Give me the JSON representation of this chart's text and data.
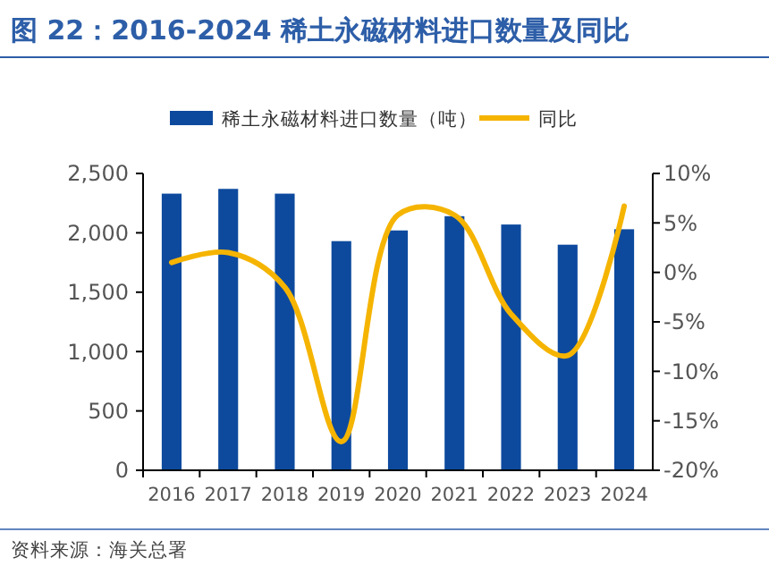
{
  "chart_data": {
    "type": "bar",
    "title": "图 22：2016-2024 稀土永磁材料进口数量及同比",
    "categories": [
      "2016",
      "2017",
      "2018",
      "2019",
      "2020",
      "2021",
      "2022",
      "2023",
      "2024"
    ],
    "series": [
      {
        "name": "稀土永磁材料进口数量（吨）",
        "color": "#0d4a9e",
        "values": [
          2330,
          2370,
          2330,
          1930,
          2020,
          2140,
          2070,
          1900,
          2030
        ]
      },
      {
        "name": "同比",
        "type": "line",
        "axis": "y2",
        "color": "#f5b400",
        "values": [
          1.0,
          2.0,
          -1.5,
          -17.1,
          5.8,
          5.8,
          -4.2,
          -8.4,
          6.7
        ]
      }
    ],
    "ylim": [
      0,
      2500
    ],
    "yticks": [
      {
        "value": 0,
        "label": "0"
      },
      {
        "value": 500,
        "label": "500"
      },
      {
        "value": 1000,
        "label": "1,000"
      },
      {
        "value": 1500,
        "label": "1,500"
      },
      {
        "value": 2000,
        "label": "2,000"
      },
      {
        "value": 2500,
        "label": "2,500"
      }
    ],
    "y2lim": [
      -20,
      10
    ],
    "y2ticks": [
      {
        "value": -20,
        "label": "-20%"
      },
      {
        "value": -15,
        "label": "-15%"
      },
      {
        "value": -10,
        "label": "-10%"
      },
      {
        "value": -5,
        "label": "-5%"
      },
      {
        "value": 0,
        "label": "0%"
      },
      {
        "value": 5,
        "label": "5%"
      },
      {
        "value": 10,
        "label": "10%"
      }
    ],
    "legend": "top",
    "grid": false,
    "marker": "none",
    "line_style": "solid",
    "annotations": [
      "资料来源：海关总署"
    ]
  }
}
